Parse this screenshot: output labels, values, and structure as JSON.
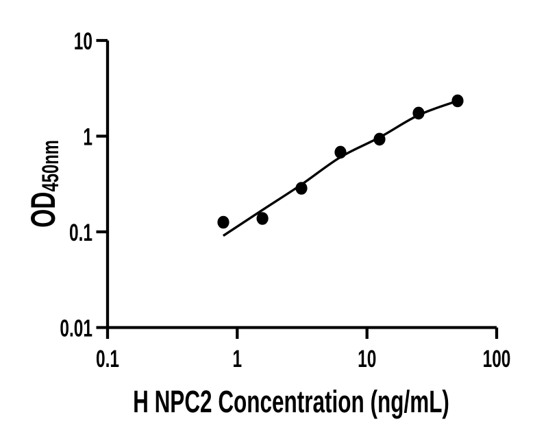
{
  "chart_data": {
    "type": "scatter",
    "title": "",
    "xlabel": "H NPC2 Concentration (ng/mL)",
    "ylabel": "OD",
    "ylabel_subscript": "450nm",
    "x_scale": "log",
    "y_scale": "log",
    "xlim": [
      0.1,
      100
    ],
    "ylim": [
      0.01,
      10
    ],
    "x_ticks": [
      "0.1",
      "1",
      "10",
      "100"
    ],
    "y_ticks": [
      "10",
      "1",
      "0.1",
      "0.01"
    ],
    "grid": false,
    "legend": "none",
    "axis_color": "#000000",
    "marker_color": "#000000",
    "curve_color": "#000000",
    "background_color": "#ffffff",
    "points": [
      {
        "x": 0.781,
        "y": 0.126
      },
      {
        "x": 1.563,
        "y": 0.138
      },
      {
        "x": 3.125,
        "y": 0.285
      },
      {
        "x": 6.25,
        "y": 0.68
      },
      {
        "x": 12.5,
        "y": 0.93
      },
      {
        "x": 25,
        "y": 1.74
      },
      {
        "x": 50,
        "y": 2.34
      }
    ],
    "fit_line": [
      {
        "x": 0.78,
        "y": 0.091
      },
      {
        "x": 1.55,
        "y": 0.168
      },
      {
        "x": 3.1,
        "y": 0.31
      },
      {
        "x": 6.2,
        "y": 0.6
      },
      {
        "x": 12.5,
        "y": 0.97
      },
      {
        "x": 25,
        "y": 1.66
      },
      {
        "x": 50,
        "y": 2.34
      }
    ]
  }
}
